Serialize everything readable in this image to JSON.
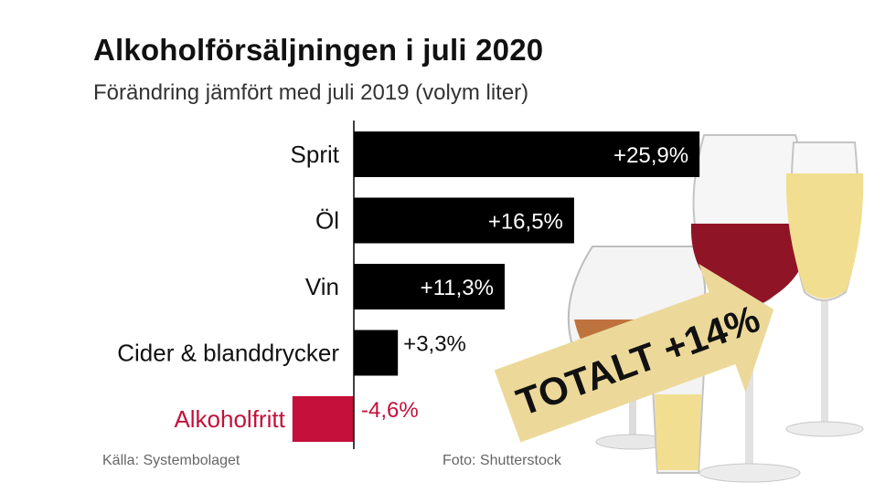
{
  "title": "Alkoholförsäljningen i juli 2020",
  "subtitle": "Förändring jämfört med juli 2019 (volym liter)",
  "source": "Källa: Systembolaget",
  "photo_credit": "Foto: Shutterstock",
  "total_label": "TOTALT +14%",
  "colors": {
    "bar": "#000000",
    "highlight": "#c4103a",
    "arrow": "#ecd99a",
    "red_wine": "#8f1426",
    "white_wine": "#f1de90"
  },
  "chart_data": {
    "type": "bar",
    "orientation": "horizontal",
    "categories": [
      "Sprit",
      "Öl",
      "Vin",
      "Cider & blanddrycker",
      "Alkoholfritt"
    ],
    "values": [
      25.9,
      16.5,
      11.3,
      3.3,
      -4.6
    ],
    "value_labels": [
      "+25,9%",
      "+16,5%",
      "+11,3%",
      "+3,3%",
      "-4,6%"
    ],
    "highlight_categories": [
      "Alkoholfritt"
    ],
    "xlim": [
      -5,
      26
    ],
    "grid": false
  }
}
